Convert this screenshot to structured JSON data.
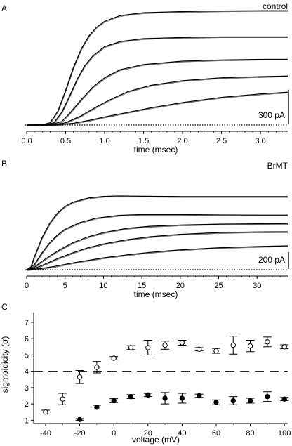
{
  "chart_data": [
    {
      "panel_label": "A",
      "type": "line",
      "annotation": "control",
      "xlabel": "time (msec)",
      "x_ticks": [
        "0.0",
        "0.5",
        "1.0",
        "1.5",
        "2.0",
        "2.5",
        "3.0"
      ],
      "xlim": [
        0,
        3.35
      ],
      "scale_bar": {
        "label": "300 pA",
        "value": 300
      },
      "series": [
        {
          "values": [
            [
              0,
              0
            ],
            [
              0.2,
              2
            ],
            [
              0.3,
              20
            ],
            [
              0.4,
              120
            ],
            [
              0.5,
              300
            ],
            [
              0.6,
              500
            ],
            [
              0.7,
              660
            ],
            [
              0.8,
              775
            ],
            [
              0.9,
              850
            ],
            [
              1.0,
              900
            ],
            [
              1.2,
              950
            ],
            [
              1.5,
              975
            ],
            [
              2.0,
              985
            ],
            [
              2.5,
              990
            ],
            [
              3.0,
              992
            ],
            [
              3.35,
              992
            ]
          ]
        },
        {
          "values": [
            [
              0,
              0
            ],
            [
              0.25,
              2
            ],
            [
              0.35,
              20
            ],
            [
              0.45,
              110
            ],
            [
              0.55,
              250
            ],
            [
              0.65,
              400
            ],
            [
              0.75,
              520
            ],
            [
              0.85,
              600
            ],
            [
              1.0,
              680
            ],
            [
              1.2,
              725
            ],
            [
              1.5,
              750
            ],
            [
              2.0,
              760
            ],
            [
              2.5,
              765
            ],
            [
              3.0,
              765
            ],
            [
              3.35,
              765
            ]
          ]
        },
        {
          "values": [
            [
              0,
              0
            ],
            [
              0.3,
              2
            ],
            [
              0.45,
              30
            ],
            [
              0.55,
              100
            ],
            [
              0.7,
              220
            ],
            [
              0.85,
              330
            ],
            [
              1.0,
              410
            ],
            [
              1.2,
              480
            ],
            [
              1.5,
              525
            ],
            [
              2.0,
              555
            ],
            [
              2.5,
              565
            ],
            [
              3.0,
              570
            ],
            [
              3.35,
              570
            ]
          ]
        },
        {
          "values": [
            [
              0,
              0
            ],
            [
              0.35,
              2
            ],
            [
              0.5,
              20
            ],
            [
              0.7,
              80
            ],
            [
              0.9,
              160
            ],
            [
              1.1,
              230
            ],
            [
              1.3,
              290
            ],
            [
              1.6,
              345
            ],
            [
              2.0,
              385
            ],
            [
              2.5,
              410
            ],
            [
              3.0,
              420
            ],
            [
              3.35,
              425
            ]
          ]
        },
        {
          "values": [
            [
              0,
              0
            ],
            [
              0.4,
              2
            ],
            [
              0.6,
              15
            ],
            [
              0.8,
              40
            ],
            [
              1.0,
              70
            ],
            [
              1.3,
              110
            ],
            [
              1.6,
              150
            ],
            [
              2.0,
              195
            ],
            [
              2.5,
              240
            ],
            [
              3.0,
              270
            ],
            [
              3.35,
              285
            ]
          ]
        }
      ]
    },
    {
      "panel_label": "B",
      "type": "line",
      "annotation": "BrMT",
      "xlabel": "time (msec)",
      "x_ticks": [
        "0",
        "5",
        "10",
        "15",
        "20",
        "25",
        "30"
      ],
      "xlim": [
        0,
        34
      ],
      "scale_bar": {
        "label": "200 pA",
        "value": 200
      },
      "series": [
        {
          "values": [
            [
              0,
              0
            ],
            [
              0.5,
              20
            ],
            [
              1,
              150
            ],
            [
              2,
              380
            ],
            [
              3,
              550
            ],
            [
              4,
              670
            ],
            [
              5,
              750
            ],
            [
              6,
              800
            ],
            [
              8,
              850
            ],
            [
              10,
              870
            ],
            [
              12,
              875
            ],
            [
              15,
              872
            ],
            [
              20,
              868
            ],
            [
              25,
              868
            ],
            [
              30,
              868
            ],
            [
              34,
              868
            ]
          ]
        },
        {
          "values": [
            [
              0,
              0
            ],
            [
              1,
              60
            ],
            [
              2,
              200
            ],
            [
              3,
              320
            ],
            [
              4,
              410
            ],
            [
              5,
              480
            ],
            [
              7,
              560
            ],
            [
              9,
              610
            ],
            [
              12,
              645
            ],
            [
              15,
              655
            ],
            [
              20,
              655
            ],
            [
              25,
              650
            ],
            [
              30,
              648
            ],
            [
              34,
              648
            ]
          ]
        },
        {
          "values": [
            [
              0,
              0
            ],
            [
              1,
              30
            ],
            [
              2,
              100
            ],
            [
              4,
              220
            ],
            [
              6,
              320
            ],
            [
              8,
              390
            ],
            [
              10,
              440
            ],
            [
              13,
              490
            ],
            [
              16,
              515
            ],
            [
              20,
              530
            ],
            [
              25,
              540
            ],
            [
              30,
              545
            ],
            [
              34,
              548
            ]
          ]
        },
        {
          "values": [
            [
              0,
              0
            ],
            [
              1,
              15
            ],
            [
              2,
              50
            ],
            [
              4,
              130
            ],
            [
              6,
              200
            ],
            [
              8,
              260
            ],
            [
              10,
              305
            ],
            [
              13,
              355
            ],
            [
              16,
              390
            ],
            [
              20,
              420
            ],
            [
              25,
              440
            ],
            [
              30,
              448
            ],
            [
              34,
              450
            ]
          ]
        },
        {
          "values": [
            [
              0,
              0
            ],
            [
              1,
              5
            ],
            [
              2,
              15
            ],
            [
              4,
              45
            ],
            [
              6,
              80
            ],
            [
              8,
              110
            ],
            [
              10,
              140
            ],
            [
              13,
              175
            ],
            [
              16,
              205
            ],
            [
              20,
              235
            ],
            [
              25,
              260
            ],
            [
              30,
              275
            ],
            [
              34,
              283
            ]
          ]
        }
      ]
    },
    {
      "panel_label": "C",
      "type": "scatter",
      "xlabel": "voltage (mV)",
      "ylabel": "sigmoidicity (σ)",
      "xlim": [
        -47,
        102
      ],
      "ylim": [
        0.8,
        7.6
      ],
      "x_ticks": [
        "-40",
        "-20",
        "0",
        "20",
        "40",
        "60",
        "80",
        "100"
      ],
      "y_ticks": [
        "1",
        "2",
        "3",
        "4",
        "5",
        "6",
        "7"
      ],
      "reference_line": 4,
      "series": [
        {
          "marker": "open-circle",
          "values": [
            [
              -40,
              1.5,
              0.12
            ],
            [
              -30,
              2.3,
              0.35
            ],
            [
              -20,
              3.65,
              0.4
            ],
            [
              -10,
              4.25,
              0.35
            ],
            [
              0,
              4.8,
              0.1
            ],
            [
              10,
              5.45,
              0.12
            ],
            [
              20,
              5.45,
              0.45
            ],
            [
              30,
              5.6,
              0.25
            ],
            [
              40,
              5.75,
              0.15
            ],
            [
              50,
              5.35,
              0.1
            ],
            [
              60,
              5.25,
              0.15
            ],
            [
              70,
              5.6,
              0.55
            ],
            [
              80,
              5.55,
              0.35
            ],
            [
              90,
              5.8,
              0.3
            ],
            [
              100,
              5.5,
              0.12
            ]
          ]
        },
        {
          "marker": "filled-circle",
          "values": [
            [
              -20,
              1.05,
              0.05
            ],
            [
              -10,
              1.8,
              0.12
            ],
            [
              0,
              2.2,
              0.12
            ],
            [
              10,
              2.45,
              0.12
            ],
            [
              20,
              2.55,
              0.1
            ],
            [
              30,
              2.35,
              0.35
            ],
            [
              40,
              2.35,
              0.3
            ],
            [
              50,
              2.5,
              0.1
            ],
            [
              60,
              2.1,
              0.15
            ],
            [
              70,
              2.2,
              0.25
            ],
            [
              80,
              2.2,
              0.15
            ],
            [
              90,
              2.45,
              0.3
            ],
            [
              100,
              2.3,
              0.1
            ]
          ]
        }
      ]
    }
  ]
}
